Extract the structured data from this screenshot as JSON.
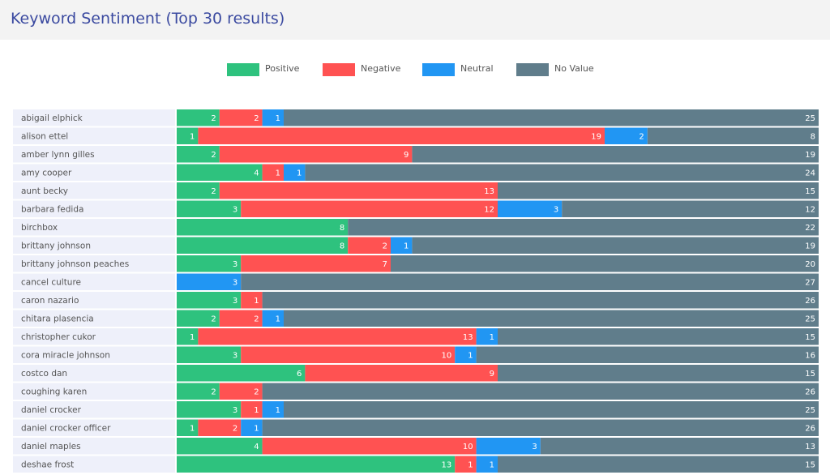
{
  "header": {
    "title": "Keyword Sentiment (Top 30 results)"
  },
  "legend": [
    {
      "label": "Positive",
      "color": "#2ec27e"
    },
    {
      "label": "Negative",
      "color": "#ff5252"
    },
    {
      "label": "Neutral",
      "color": "#2196f3"
    },
    {
      "label": "No Value",
      "color": "#607d8b"
    }
  ],
  "chart_data": {
    "type": "bar",
    "orientation": "horizontal",
    "stacked": true,
    "total_per_row": 30,
    "categories": [
      "abigail elphick",
      "alison ettel",
      "amber lynn gilles",
      "amy cooper",
      "aunt becky",
      "barbara fedida",
      "birchbox",
      "brittany johnson",
      "brittany johnson peaches",
      "cancel culture",
      "caron nazario",
      "chitara plasencia",
      "christopher cukor",
      "cora miracle johnson",
      "costco dan",
      "coughing karen",
      "daniel crocker",
      "daniel crocker officer",
      "daniel maples",
      "deshae frost"
    ],
    "series": [
      {
        "name": "Positive",
        "color": "#2ec27e",
        "values": [
          2,
          1,
          2,
          4,
          2,
          3,
          8,
          8,
          3,
          0,
          3,
          2,
          1,
          3,
          6,
          2,
          3,
          1,
          4,
          13
        ]
      },
      {
        "name": "Negative",
        "color": "#ff5252",
        "values": [
          2,
          19,
          9,
          1,
          13,
          12,
          0,
          2,
          7,
          0,
          1,
          2,
          13,
          10,
          9,
          2,
          1,
          2,
          10,
          1
        ]
      },
      {
        "name": "Neutral",
        "color": "#2196f3",
        "values": [
          1,
          2,
          0,
          1,
          0,
          3,
          0,
          1,
          0,
          3,
          0,
          1,
          1,
          1,
          0,
          0,
          1,
          1,
          3,
          1
        ]
      },
      {
        "name": "No Value",
        "color": "#607d8b",
        "values": [
          25,
          8,
          19,
          24,
          15,
          12,
          22,
          19,
          20,
          27,
          26,
          25,
          15,
          16,
          15,
          26,
          25,
          26,
          13,
          15
        ]
      }
    ]
  }
}
